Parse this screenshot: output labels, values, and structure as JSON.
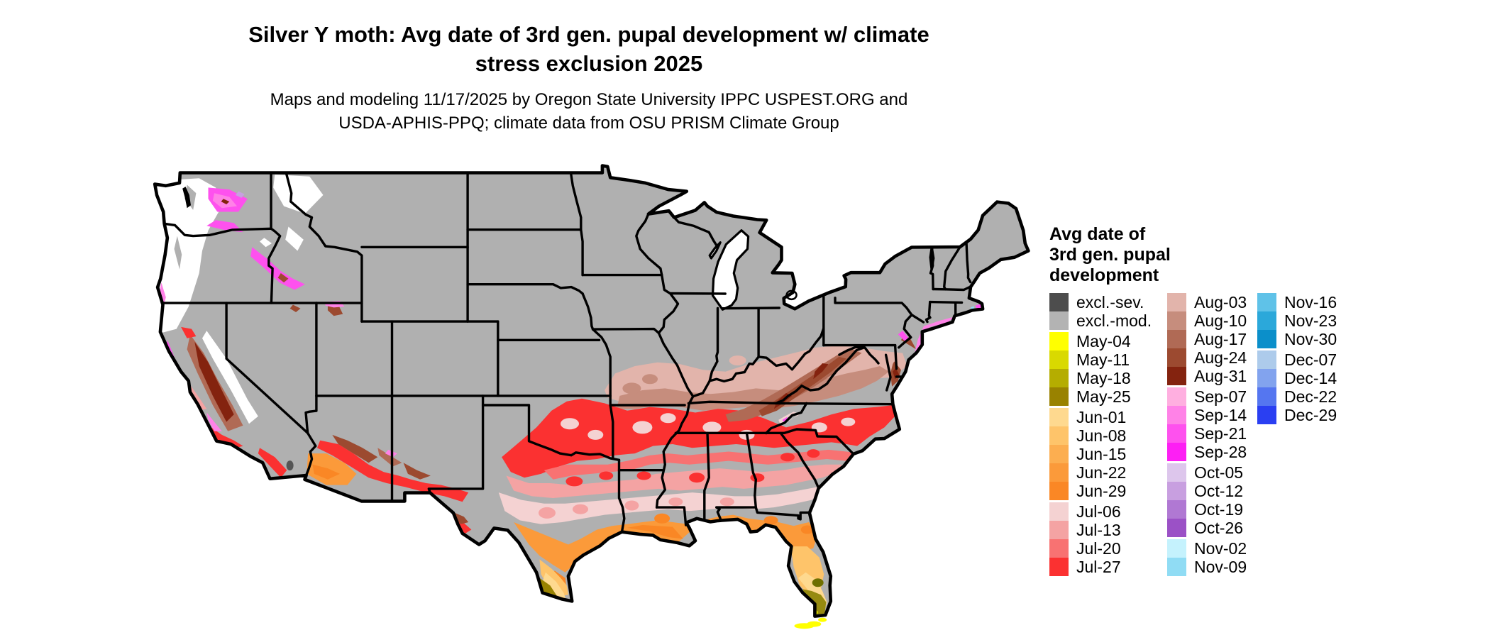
{
  "page": {
    "background_color": "#ffffff"
  },
  "header": {
    "title_line1": "Silver Y moth: Avg date of 3rd gen. pupal development w/ climate",
    "title_line2": "stress exclusion 2025",
    "subtitle_line1": "Maps and modeling 11/17/2025 by Oregon State University IPPC USPEST.ORG and",
    "subtitle_line2": "USDA-APHIS-PPQ; climate data from OSU PRISM Climate Group"
  },
  "map": {
    "region": "Contiguous United States",
    "colors": {
      "excluded_moderate_fill": "#b0b0b0",
      "excluded_severe_fill": "#4d4d4d",
      "no_development_fill": "#ffffff",
      "border": "#000000"
    }
  },
  "legend": {
    "title_lines": [
      "Avg date of",
      "3rd gen. pupal",
      "development"
    ],
    "columns": [
      [
        {
          "label": "excl.-sev.",
          "color": "#4d4d4d"
        },
        {
          "label": "excl.-mod.",
          "color": "#b3b3b3",
          "gap_after": true
        },
        {
          "label": "May-04",
          "color": "#ffff00"
        },
        {
          "label": "May-11",
          "color": "#d9d900"
        },
        {
          "label": "May-18",
          "color": "#b5ad00"
        },
        {
          "label": "May-25",
          "color": "#998200",
          "gap_after": true
        },
        {
          "label": "Jun-01",
          "color": "#fed98f"
        },
        {
          "label": "Jun-08",
          "color": "#fec46a"
        },
        {
          "label": "Jun-15",
          "color": "#fcae50"
        },
        {
          "label": "Jun-22",
          "color": "#fb9a3a"
        },
        {
          "label": "Jun-29",
          "color": "#fa8725",
          "gap_after": true
        },
        {
          "label": "Jul-06",
          "color": "#f4d2d2"
        },
        {
          "label": "Jul-13",
          "color": "#f4a3a3"
        },
        {
          "label": "Jul-20",
          "color": "#f87272"
        },
        {
          "label": "Jul-27",
          "color": "#fb3131"
        }
      ],
      [
        {
          "label": "Aug-03",
          "color": "#e2b4ab"
        },
        {
          "label": "Aug-10",
          "color": "#c68d7d"
        },
        {
          "label": "Aug-17",
          "color": "#b06a55"
        },
        {
          "label": "Aug-24",
          "color": "#9c4a30"
        },
        {
          "label": "Aug-31",
          "color": "#84230f",
          "gap_after": true
        },
        {
          "label": "Sep-07",
          "color": "#ffafe0"
        },
        {
          "label": "Sep-14",
          "color": "#ff82e7"
        },
        {
          "label": "Sep-21",
          "color": "#fe51ee"
        },
        {
          "label": "Sep-28",
          "color": "#fd1ff4",
          "gap_after": true
        },
        {
          "label": "Oct-05",
          "color": "#ddc6ec"
        },
        {
          "label": "Oct-12",
          "color": "#c89fe0"
        },
        {
          "label": "Oct-19",
          "color": "#b078d3"
        },
        {
          "label": "Oct-26",
          "color": "#9b51c6",
          "gap_after": true
        },
        {
          "label": "Nov-02",
          "color": "#c5f2fd"
        },
        {
          "label": "Nov-09",
          "color": "#90dcf4"
        }
      ],
      [
        {
          "label": "Nov-16",
          "color": "#5fc2e8"
        },
        {
          "label": "Nov-23",
          "color": "#2ba8da"
        },
        {
          "label": "Nov-30",
          "color": "#0b8fca",
          "gap_after": true
        },
        {
          "label": "Dec-07",
          "color": "#adcbeb"
        },
        {
          "label": "Dec-14",
          "color": "#82a3ee"
        },
        {
          "label": "Dec-22",
          "color": "#5576f0"
        },
        {
          "label": "Dec-29",
          "color": "#2a3ff2"
        }
      ]
    ]
  }
}
